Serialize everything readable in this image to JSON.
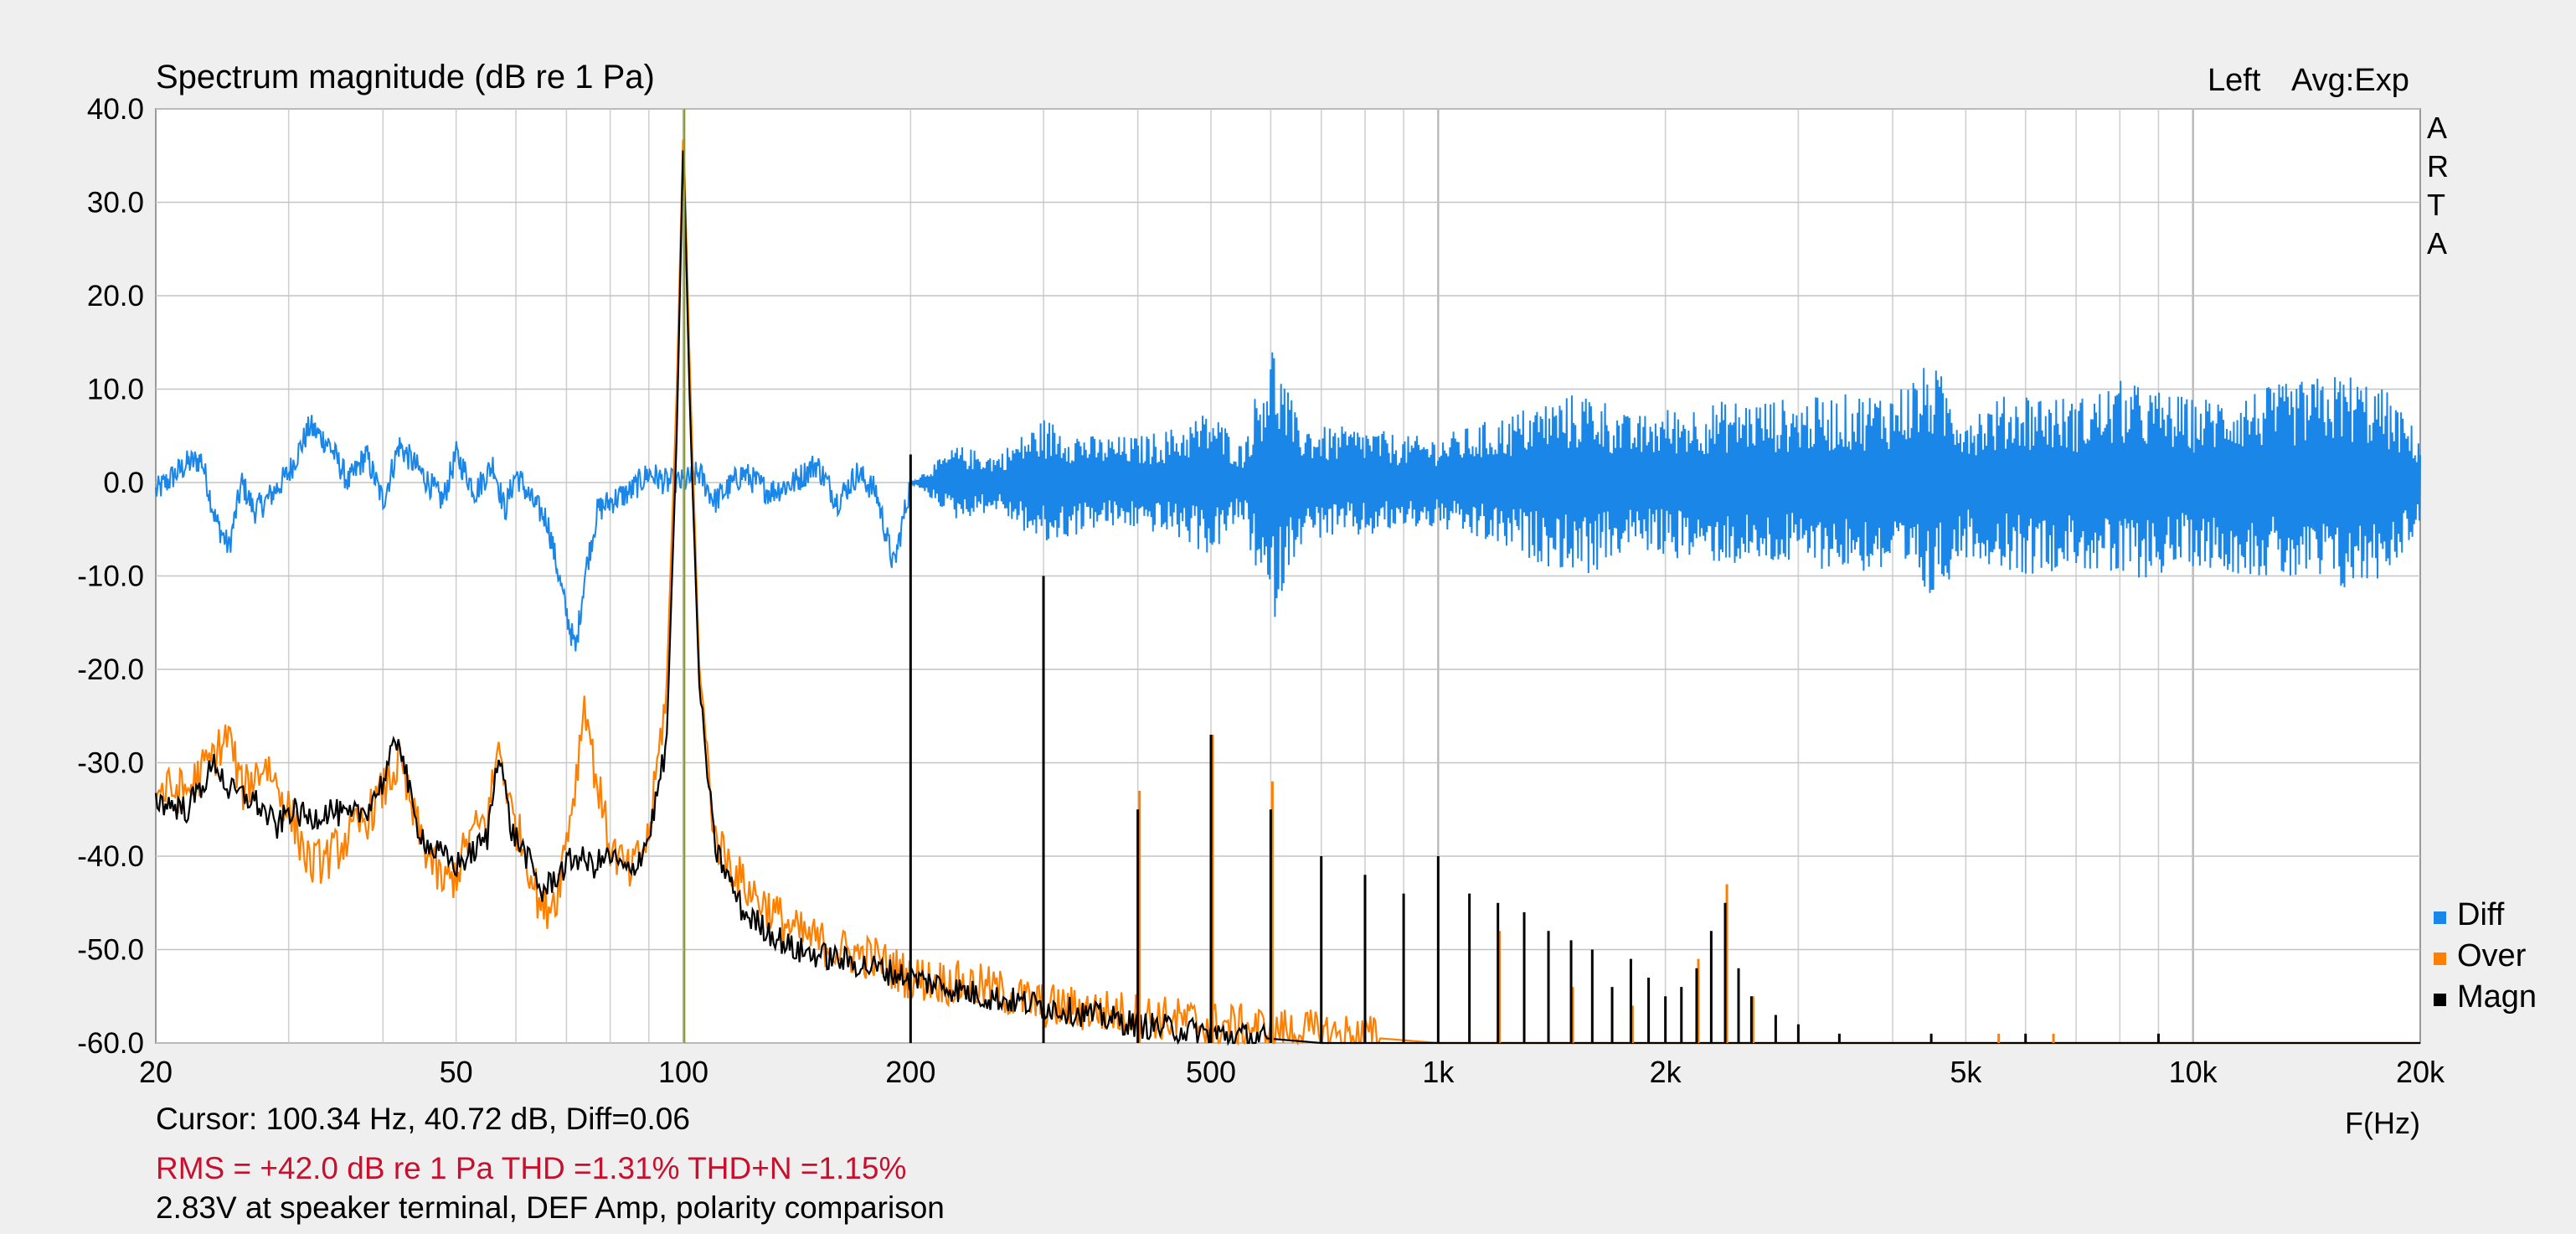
{
  "chart_data": {
    "type": "line",
    "title": "Spectrum magnitude (dB re 1 Pa)",
    "channel_label": "Left",
    "averaging_label": "Avg:Exp",
    "brand_letters": [
      "A",
      "R",
      "T",
      "A"
    ],
    "xlabel": "F(Hz)",
    "x_scale": "log",
    "xlim": [
      20,
      20000
    ],
    "ylim": [
      -60,
      40
    ],
    "x_ticks": [
      {
        "value": 20,
        "label": "20"
      },
      {
        "value": 50,
        "label": "50"
      },
      {
        "value": 100,
        "label": "100"
      },
      {
        "value": 200,
        "label": "200"
      },
      {
        "value": 500,
        "label": "500"
      },
      {
        "value": 1000,
        "label": "1k"
      },
      {
        "value": 2000,
        "label": "2k"
      },
      {
        "value": 5000,
        "label": "5k"
      },
      {
        "value": 10000,
        "label": "10k"
      },
      {
        "value": 20000,
        "label": "20k"
      }
    ],
    "y_ticks": [
      {
        "value": 40,
        "label": "40.0"
      },
      {
        "value": 30,
        "label": "30.0"
      },
      {
        "value": 20,
        "label": "20.0"
      },
      {
        "value": 10,
        "label": "10.0"
      },
      {
        "value": 0,
        "label": "0.0"
      },
      {
        "value": -10,
        "label": "-10.0"
      },
      {
        "value": -20,
        "label": "-20.0"
      },
      {
        "value": -30,
        "label": "-30.0"
      },
      {
        "value": -40,
        "label": "-40.0"
      },
      {
        "value": -50,
        "label": "-50.0"
      },
      {
        "value": -60,
        "label": "-60.0"
      }
    ],
    "grid": true,
    "legend_position": "bottom-right",
    "cursor_hz": 100.34,
    "series": [
      {
        "name": "Diff",
        "color": "#1a86e8",
        "points": [
          [
            20,
            -1
          ],
          [
            22,
            2
          ],
          [
            23,
            2.5
          ],
          [
            24,
            -4
          ],
          [
            25,
            -7
          ],
          [
            26,
            0
          ],
          [
            27,
            -3
          ],
          [
            28,
            -2
          ],
          [
            30,
            1
          ],
          [
            32,
            6
          ],
          [
            34,
            4
          ],
          [
            36,
            0
          ],
          [
            38,
            3
          ],
          [
            40,
            -2
          ],
          [
            42,
            4
          ],
          [
            45,
            1
          ],
          [
            48,
            -2
          ],
          [
            50,
            3
          ],
          [
            53,
            -1
          ],
          [
            56,
            2
          ],
          [
            58,
            -3
          ],
          [
            60,
            1
          ],
          [
            63,
            -2
          ],
          [
            66,
            -4
          ],
          [
            68,
            -9
          ],
          [
            70,
            -14
          ],
          [
            72,
            -18
          ],
          [
            74,
            -10
          ],
          [
            77,
            -3
          ],
          [
            80,
            -2
          ],
          [
            85,
            -1
          ],
          [
            90,
            1
          ],
          [
            95,
            0
          ],
          [
            100,
            0
          ],
          [
            105,
            1
          ],
          [
            110,
            -2
          ],
          [
            120,
            1
          ],
          [
            130,
            -1
          ],
          [
            140,
            0
          ],
          [
            150,
            2
          ],
          [
            160,
            -2
          ],
          [
            170,
            1
          ],
          [
            180,
            -1
          ],
          [
            190,
            -9
          ],
          [
            200,
            0
          ],
          [
            230,
            -4
          ],
          [
            260,
            3
          ],
          [
            300,
            -7
          ],
          [
            350,
            5
          ],
          [
            400,
            -5
          ],
          [
            450,
            6
          ],
          [
            500,
            -8
          ],
          [
            550,
            4
          ],
          [
            600,
            -16
          ],
          [
            650,
            -7
          ],
          [
            700,
            6
          ],
          [
            800,
            -6
          ],
          [
            900,
            5
          ],
          [
            1000,
            -5
          ],
          [
            1200,
            7
          ],
          [
            1400,
            -9
          ],
          [
            1600,
            10
          ],
          [
            1800,
            -7
          ],
          [
            2000,
            8
          ],
          [
            2500,
            -9
          ],
          [
            3000,
            9
          ],
          [
            4000,
            -10
          ],
          [
            4500,
            13
          ],
          [
            5000,
            -8
          ],
          [
            6000,
            10
          ],
          [
            7000,
            -9
          ],
          [
            8000,
            11
          ],
          [
            10000,
            -9
          ],
          [
            12000,
            10
          ],
          [
            14000,
            -11
          ],
          [
            16000,
            12
          ],
          [
            18000,
            -10
          ],
          [
            20000,
            5
          ]
        ]
      },
      {
        "name": "Over",
        "color": "#ff8000",
        "points": [
          [
            20,
            -33
          ],
          [
            22,
            -33
          ],
          [
            24,
            -29
          ],
          [
            25,
            -27
          ],
          [
            26,
            -33
          ],
          [
            28,
            -30
          ],
          [
            30,
            -35
          ],
          [
            32,
            -41
          ],
          [
            34,
            -40
          ],
          [
            36,
            -38
          ],
          [
            38,
            -36
          ],
          [
            40,
            -33
          ],
          [
            42,
            -30
          ],
          [
            44,
            -36
          ],
          [
            46,
            -40
          ],
          [
            48,
            -43
          ],
          [
            50,
            -42
          ],
          [
            52,
            -38
          ],
          [
            55,
            -36
          ],
          [
            57,
            -28
          ],
          [
            59,
            -35
          ],
          [
            62,
            -40
          ],
          [
            65,
            -46
          ],
          [
            68,
            -44
          ],
          [
            72,
            -32
          ],
          [
            74,
            -23
          ],
          [
            76,
            -30
          ],
          [
            80,
            -39
          ],
          [
            85,
            -42
          ],
          [
            90,
            -38
          ],
          [
            95,
            -22
          ],
          [
            98,
            10
          ],
          [
            100,
            38
          ],
          [
            102,
            12
          ],
          [
            105,
            -20
          ],
          [
            110,
            -38
          ],
          [
            120,
            -43
          ],
          [
            140,
            -48
          ],
          [
            160,
            -50
          ],
          [
            180,
            -51
          ],
          [
            200,
            -53
          ],
          [
            250,
            -54
          ],
          [
            300,
            -56
          ],
          [
            400,
            -57
          ],
          [
            500,
            -58
          ],
          [
            700,
            -59
          ],
          [
            1000,
            -60
          ],
          [
            2000,
            -60
          ],
          [
            20000,
            -60
          ]
        ]
      },
      {
        "name": "Magn",
        "color": "#000000",
        "points": [
          [
            20,
            -34
          ],
          [
            22,
            -35
          ],
          [
            24,
            -30
          ],
          [
            25,
            -33
          ],
          [
            27,
            -34
          ],
          [
            29,
            -37
          ],
          [
            30,
            -35
          ],
          [
            32,
            -36
          ],
          [
            34,
            -35
          ],
          [
            36,
            -36
          ],
          [
            38,
            -35
          ],
          [
            40,
            -32
          ],
          [
            42,
            -27
          ],
          [
            44,
            -36
          ],
          [
            46,
            -39
          ],
          [
            48,
            -40
          ],
          [
            50,
            -41
          ],
          [
            52,
            -40
          ],
          [
            55,
            -38
          ],
          [
            57,
            -28
          ],
          [
            59,
            -37
          ],
          [
            62,
            -40
          ],
          [
            65,
            -44
          ],
          [
            68,
            -42
          ],
          [
            72,
            -40
          ],
          [
            76,
            -41
          ],
          [
            80,
            -40
          ],
          [
            85,
            -42
          ],
          [
            90,
            -38
          ],
          [
            95,
            -28
          ],
          [
            98,
            5
          ],
          [
            100,
            37
          ],
          [
            102,
            8
          ],
          [
            105,
            -22
          ],
          [
            110,
            -39
          ],
          [
            120,
            -46
          ],
          [
            140,
            -50
          ],
          [
            160,
            -51
          ],
          [
            180,
            -52
          ],
          [
            200,
            -53
          ],
          [
            250,
            -55
          ],
          [
            300,
            -56
          ],
          [
            400,
            -58
          ],
          [
            500,
            -59
          ],
          [
            700,
            -60
          ],
          [
            1000,
            -60
          ],
          [
            20000,
            -60
          ]
        ]
      }
    ],
    "harmonic_lines": {
      "color": "#000000",
      "spikes": [
        [
          200,
          3
        ],
        [
          300,
          -10
        ],
        [
          400,
          -35
        ],
        [
          500,
          -27
        ],
        [
          600,
          -35
        ],
        [
          700,
          -40
        ],
        [
          800,
          -42
        ],
        [
          900,
          -44
        ],
        [
          1000,
          -40
        ],
        [
          1100,
          -44
        ],
        [
          1200,
          -45
        ],
        [
          1300,
          -46
        ],
        [
          1400,
          -48
        ],
        [
          1500,
          -49
        ],
        [
          1600,
          -50
        ],
        [
          1700,
          -54
        ],
        [
          1800,
          -51
        ],
        [
          1900,
          -53
        ],
        [
          2000,
          -55
        ],
        [
          2100,
          -54
        ],
        [
          2200,
          -52
        ],
        [
          2300,
          -48
        ],
        [
          2400,
          -45
        ],
        [
          2500,
          -52
        ],
        [
          2600,
          -55
        ],
        [
          2800,
          -57
        ],
        [
          3000,
          -58
        ],
        [
          3400,
          -59
        ],
        [
          4500,
          -59
        ],
        [
          6000,
          -59
        ],
        [
          9000,
          -59
        ]
      ]
    },
    "orange_spikes": {
      "color": "#ff8000",
      "spikes": [
        [
          400,
          -33
        ],
        [
          500,
          -27
        ],
        [
          600,
          -32
        ],
        [
          1200,
          -48
        ],
        [
          1500,
          -54
        ],
        [
          1800,
          -56
        ],
        [
          2200,
          -51
        ],
        [
          2400,
          -43
        ],
        [
          2600,
          -55
        ],
        [
          5500,
          -59
        ],
        [
          6500,
          -59
        ]
      ]
    }
  },
  "readouts": {
    "cursor": "Cursor: 100.34 Hz, 40.72 dB,  Diff=0.06",
    "summary": "RMS =  +42.0 dB re 1 Pa THD =1.31% THD+N =1.15%",
    "note": "2.83V at speaker terminal, DEF Amp, polarity comparison"
  }
}
